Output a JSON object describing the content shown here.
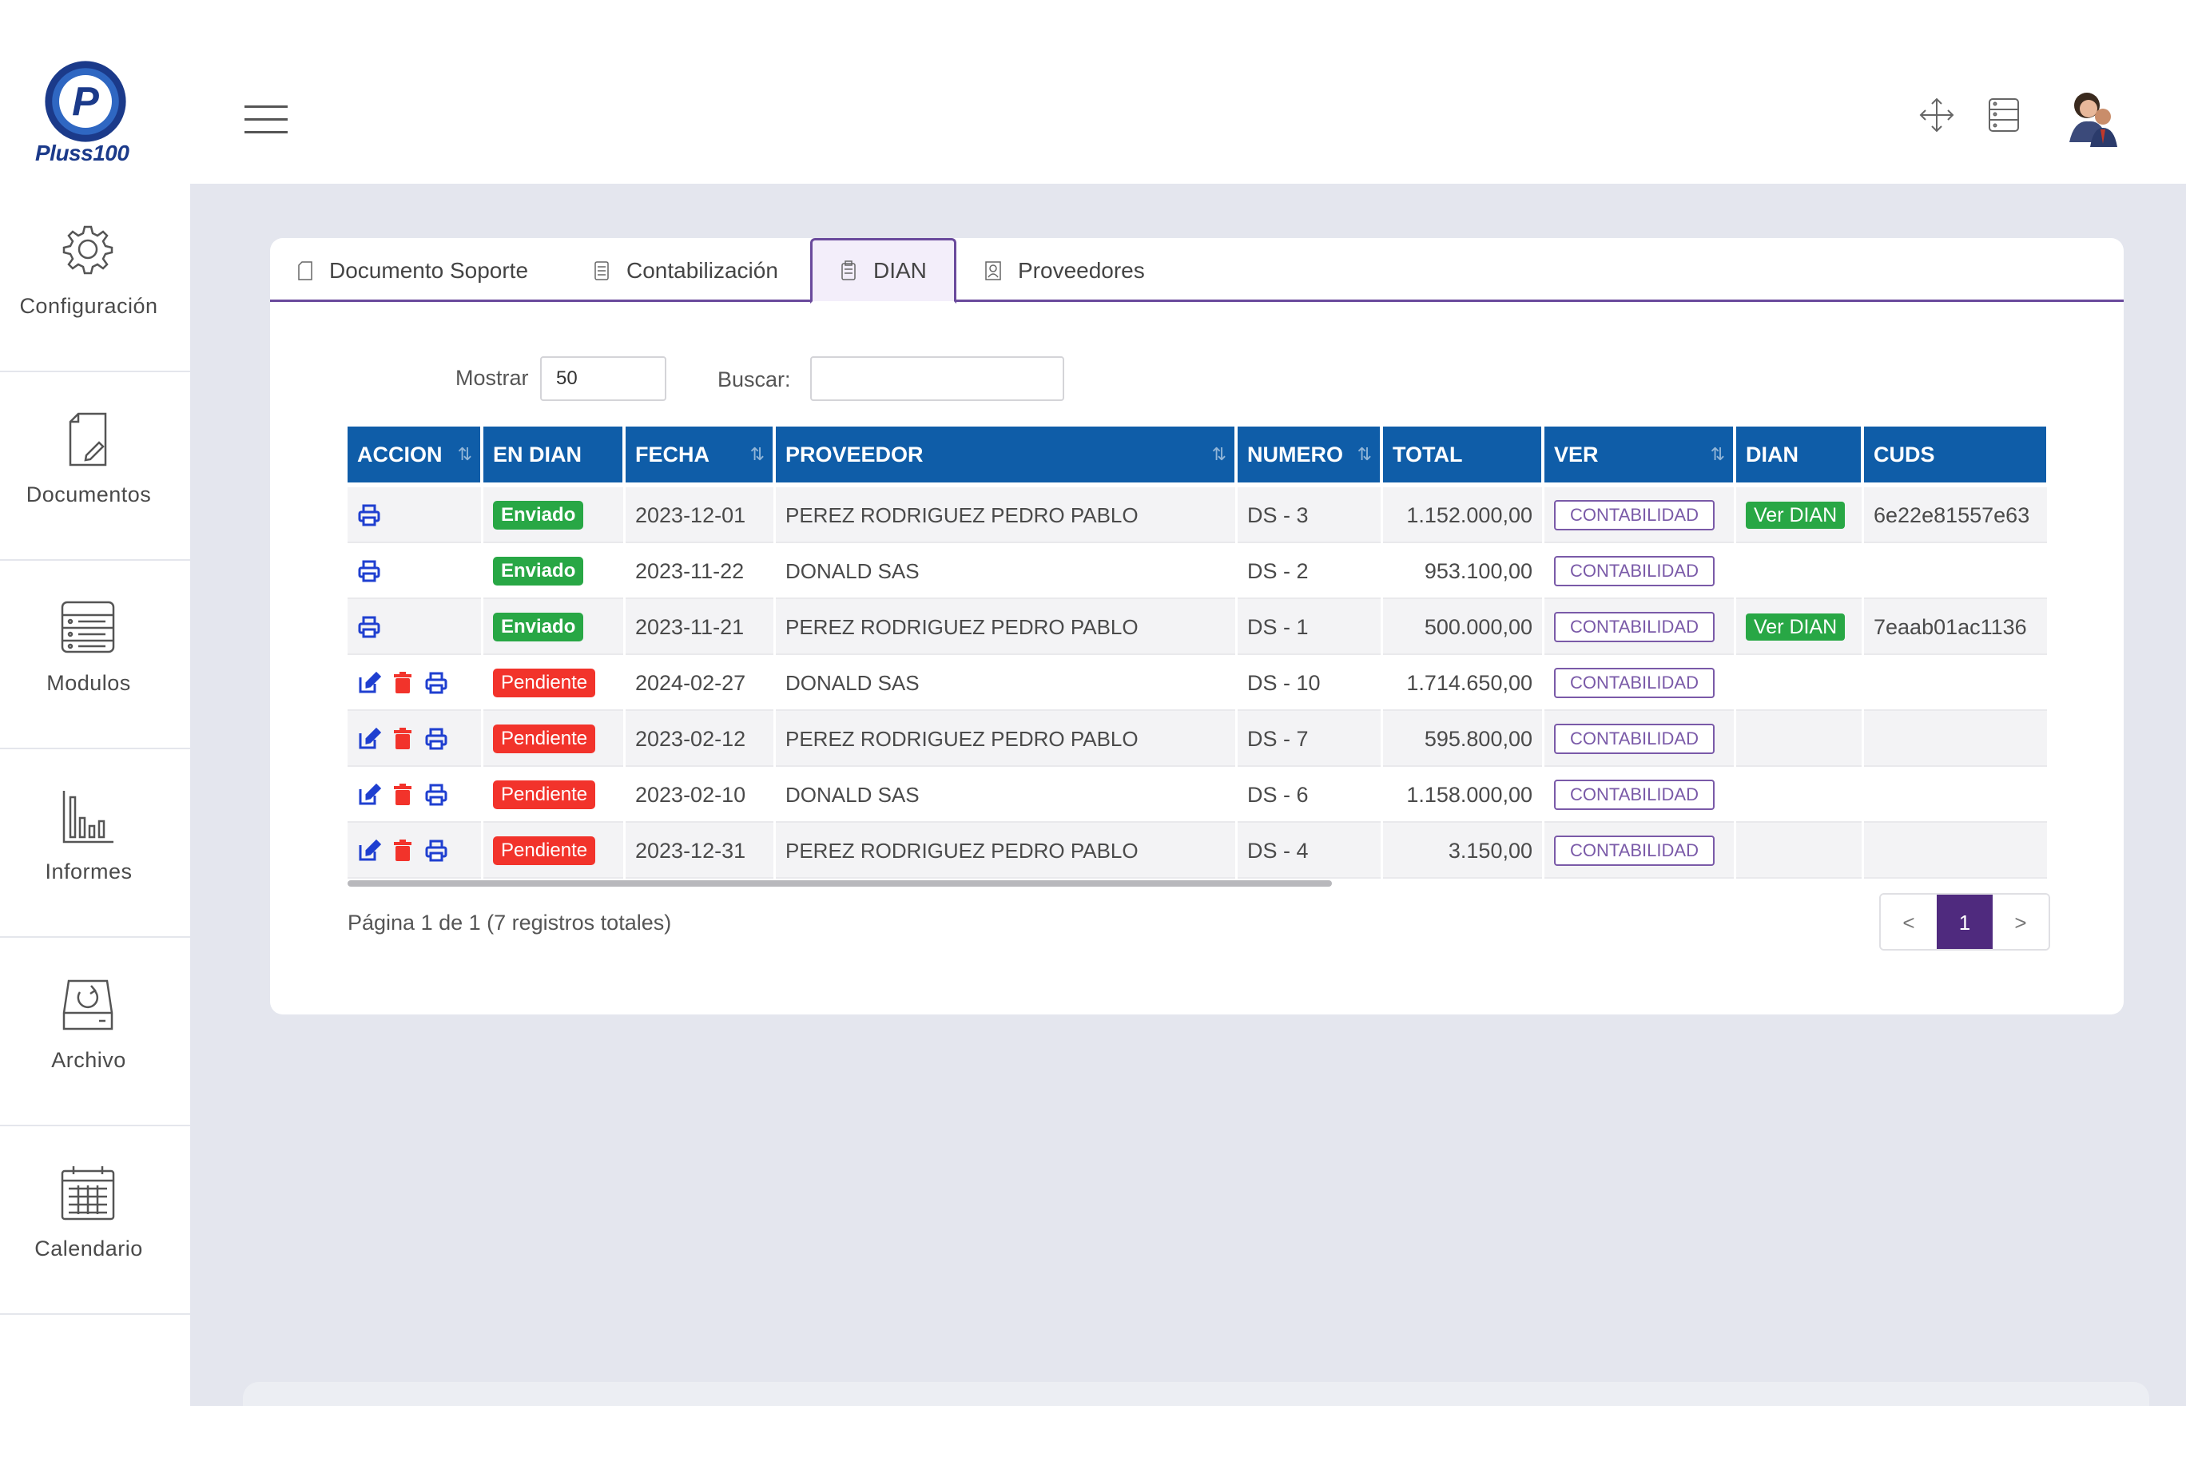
{
  "brand": {
    "name": "Pluss100",
    "logo_letter": "P"
  },
  "sidebar": {
    "items": [
      {
        "label": "Configuración",
        "icon": "gear-icon"
      },
      {
        "label": "Documentos",
        "icon": "document-icon"
      },
      {
        "label": "Modulos",
        "icon": "modules-icon"
      },
      {
        "label": "Informes",
        "icon": "bar-chart-icon"
      },
      {
        "label": "Archivo",
        "icon": "archive-icon"
      },
      {
        "label": "Calendario",
        "icon": "calendar-icon"
      }
    ]
  },
  "tabs": [
    {
      "label": "Documento Soporte",
      "active": false
    },
    {
      "label": "Contabilización",
      "active": false
    },
    {
      "label": "DIAN",
      "active": true
    },
    {
      "label": "Proveedores",
      "active": false
    }
  ],
  "controls": {
    "show_label": "Mostrar",
    "show_value": "50",
    "search_label": "Buscar:",
    "search_value": ""
  },
  "table": {
    "columns": [
      "ACCION",
      "EN DIAN",
      "FECHA",
      "PROVEEDOR",
      "NUMERO",
      "TOTAL",
      "VER",
      "DIAN",
      "CUDS"
    ],
    "rows": [
      {
        "actions": [
          "print"
        ],
        "status": "Enviado",
        "fecha": "2023-12-01",
        "proveedor": "PEREZ RODRIGUEZ PEDRO PABLO",
        "numero": "DS - 3",
        "total": "1.152.000,00",
        "ver": "CONTABILIDAD",
        "dian": "Ver DIAN",
        "cuds": "6e22e81557e63"
      },
      {
        "actions": [
          "print"
        ],
        "status": "Enviado",
        "fecha": "2023-11-22",
        "proveedor": "DONALD SAS",
        "numero": "DS - 2",
        "total": "953.100,00",
        "ver": "CONTABILIDAD",
        "dian": "",
        "cuds": ""
      },
      {
        "actions": [
          "print"
        ],
        "status": "Enviado",
        "fecha": "2023-11-21",
        "proveedor": "PEREZ RODRIGUEZ PEDRO PABLO",
        "numero": "DS - 1",
        "total": "500.000,00",
        "ver": "CONTABILIDAD",
        "dian": "Ver DIAN",
        "cuds": "7eaab01ac1136"
      },
      {
        "actions": [
          "edit",
          "delete",
          "print"
        ],
        "status": "Pendiente",
        "fecha": "2024-02-27",
        "proveedor": "DONALD SAS",
        "numero": "DS - 10",
        "total": "1.714.650,00",
        "ver": "CONTABILIDAD",
        "dian": "",
        "cuds": ""
      },
      {
        "actions": [
          "edit",
          "delete",
          "print"
        ],
        "status": "Pendiente",
        "fecha": "2023-02-12",
        "proveedor": "PEREZ RODRIGUEZ PEDRO PABLO",
        "numero": "DS - 7",
        "total": "595.800,00",
        "ver": "CONTABILIDAD",
        "dian": "",
        "cuds": ""
      },
      {
        "actions": [
          "edit",
          "delete",
          "print"
        ],
        "status": "Pendiente",
        "fecha": "2023-02-10",
        "proveedor": "DONALD SAS",
        "numero": "DS - 6",
        "total": "1.158.000,00",
        "ver": "CONTABILIDAD",
        "dian": "",
        "cuds": ""
      },
      {
        "actions": [
          "edit",
          "delete",
          "print"
        ],
        "status": "Pendiente",
        "fecha": "2023-12-31",
        "proveedor": "PEREZ RODRIGUEZ PEDRO PABLO",
        "numero": "DS - 4",
        "total": "3.150,00",
        "ver": "CONTABILIDAD",
        "dian": "",
        "cuds": ""
      }
    ]
  },
  "pagination": {
    "info": "Página 1 de 1 (7 registros totales)",
    "prev": "<",
    "current": "1",
    "next": ">"
  },
  "colors": {
    "header_blue": "#0f5da8",
    "accent_purple": "#6a4a9c",
    "status_green": "#28a745",
    "status_red": "#f2332b",
    "page_active": "#4f2a7e"
  }
}
